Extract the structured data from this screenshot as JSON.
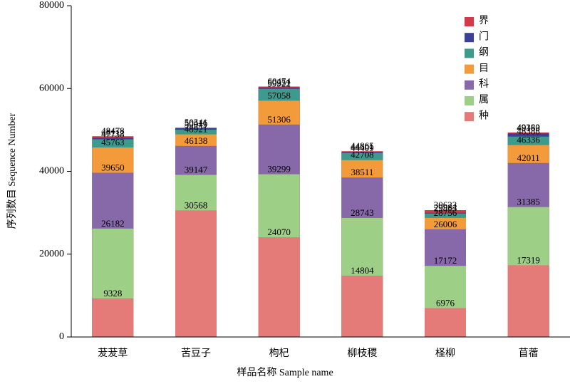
{
  "chart_data": {
    "type": "bar",
    "xlabel": "样品名称 Sample name",
    "ylabel": "序列数目 Sequence Number",
    "categories": [
      "茇茇草",
      "苦豆子",
      "枸杞",
      "柳枝稷",
      "柽柳",
      "苜蓿"
    ],
    "series": [
      {
        "name": "界",
        "color": "#d23a48",
        "values": [
          48478,
          50541,
          60474,
          44865,
          30623,
          49380
        ]
      },
      {
        "name": "门",
        "color": "#3b3f96",
        "values": [
          48112,
          50416,
          60251,
          44601,
          29984,
          49163
        ]
      },
      {
        "name": "纲",
        "color": "#3e9a8c",
        "values": [
          47738,
          50049,
          59922,
          44409,
          29813,
          48388
        ]
      },
      {
        "name": "目",
        "color": "#f39b3a",
        "values": [
          45763,
          48921,
          57058,
          42708,
          28756,
          46336
        ]
      },
      {
        "name": "科",
        "color": "#8768a8",
        "values": [
          39650,
          46138,
          51306,
          38511,
          26006,
          42011
        ]
      },
      {
        "name": "属",
        "color": "#9dcf86",
        "values": [
          26182,
          39147,
          39299,
          28743,
          17172,
          31385
        ]
      },
      {
        "name": "种",
        "color": "#e57b78",
        "values": [
          9328,
          30568,
          24070,
          14804,
          6976,
          17319
        ]
      }
    ],
    "ylim": [
      0,
      80000
    ],
    "yticks": [
      0,
      20000,
      40000,
      60000,
      80000
    ]
  }
}
